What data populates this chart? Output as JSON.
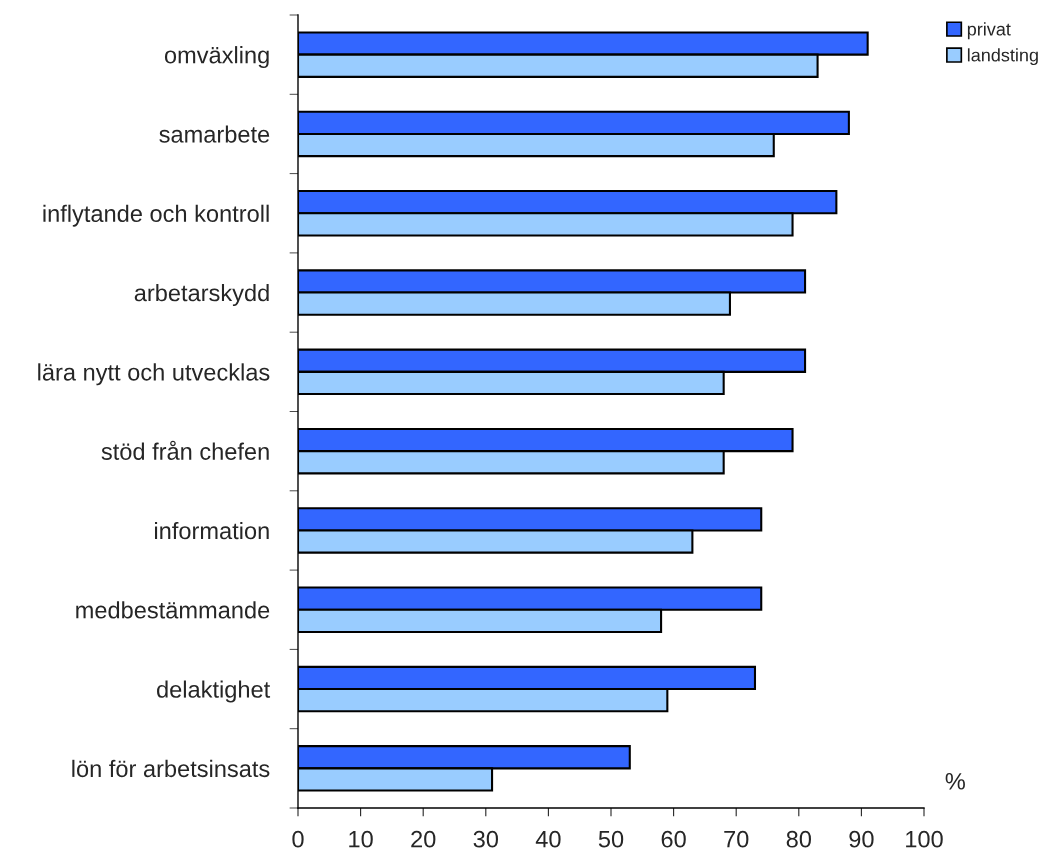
{
  "chart_data": {
    "type": "bar",
    "orientation": "horizontal",
    "xlabel": "%",
    "categories": [
      "omväxling",
      "samarbete",
      "inflytande och kontroll",
      "arbetarskydd",
      "lära nytt och utvecklas",
      "stöd från chefen",
      "information",
      "medbestämmande",
      "delaktighet",
      "lön för arbetsinsats"
    ],
    "series": [
      {
        "name": "privat",
        "color": "#3366ff",
        "values": [
          91,
          88,
          86,
          81,
          81,
          79,
          74,
          74,
          73,
          53
        ]
      },
      {
        "name": "landsting",
        "color": "#99ccff",
        "values": [
          83,
          76,
          79,
          69,
          68,
          68,
          63,
          58,
          59,
          31
        ]
      }
    ],
    "xlim": [
      0,
      100
    ],
    "xticks": [
      0,
      10,
      20,
      30,
      40,
      50,
      60,
      70,
      80,
      90,
      100
    ],
    "grid": false,
    "legend": "top right"
  }
}
